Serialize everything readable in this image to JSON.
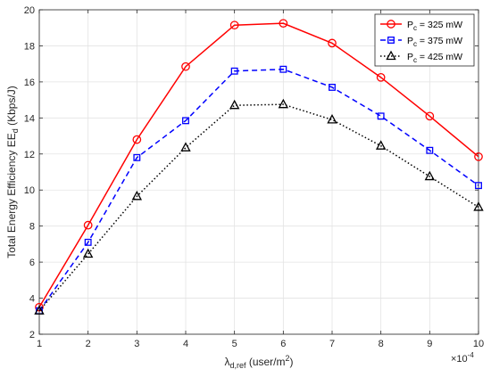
{
  "chart_data": {
    "type": "line",
    "title": "",
    "xlabel_parts": {
      "symbol": "λ",
      "subscript": "d,ref",
      "unit_prefix": " (user/m",
      "unit_sup": "2",
      "unit_suffix": ")"
    },
    "ylabel_parts": {
      "prefix": "Total Energy Efficiency EE",
      "subscript": "d",
      "suffix": " (Kbps/J)"
    },
    "x_multiplier": "×10",
    "x_multiplier_exp": "-4",
    "x": [
      1,
      2,
      3,
      4,
      5,
      6,
      7,
      8,
      9,
      10
    ],
    "xlim": [
      1,
      10
    ],
    "ylim": [
      2,
      20
    ],
    "xticks": [
      1,
      2,
      3,
      4,
      5,
      6,
      7,
      8,
      9,
      10
    ],
    "yticks": [
      2,
      4,
      6,
      8,
      10,
      12,
      14,
      16,
      18,
      20
    ],
    "grid": true,
    "legend_placement": "top-right",
    "series": [
      {
        "label_main": "P",
        "label_sub": "c",
        "label_rest": " = 325 mW",
        "color": "#ff0000",
        "line": "solid",
        "marker": "circle",
        "values": [
          3.5,
          8.05,
          12.8,
          16.85,
          19.15,
          19.25,
          18.15,
          16.25,
          14.1,
          11.85
        ]
      },
      {
        "label_main": "P",
        "label_sub": "c",
        "label_rest": " = 375 mW",
        "color": "#0000ff",
        "line": "dashed",
        "marker": "square",
        "values": [
          3.3,
          7.1,
          11.8,
          13.85,
          16.6,
          16.7,
          15.7,
          14.1,
          12.2,
          10.25
        ]
      },
      {
        "label_main": "P",
        "label_sub": "c",
        "label_rest": " = 425 mW",
        "color": "#000000",
        "line": "dotted",
        "marker": "triangle",
        "values": [
          3.3,
          6.45,
          9.65,
          12.35,
          14.7,
          14.75,
          13.9,
          12.45,
          10.75,
          9.05
        ]
      }
    ]
  }
}
